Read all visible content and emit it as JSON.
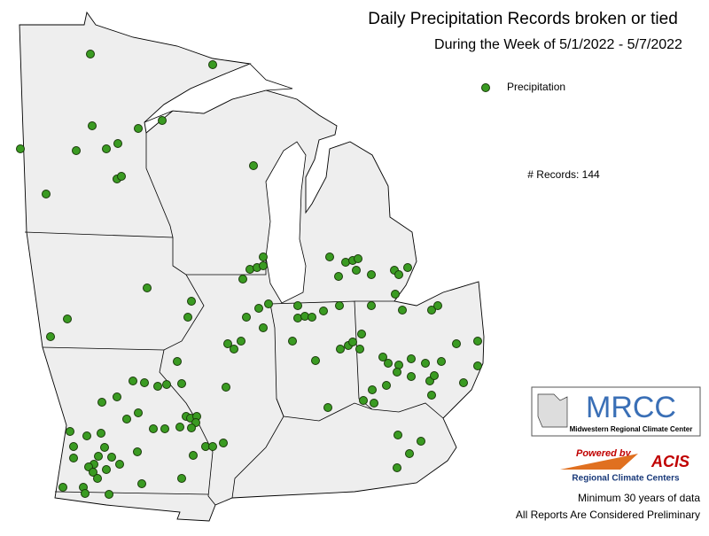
{
  "header": {
    "title": "Daily Precipitation Records broken or tied",
    "subtitle": "During the Week of 5/1/2022 - 5/7/2022"
  },
  "legend": {
    "label": "Precipitation"
  },
  "records": "# Records: 144",
  "logo": {
    "name": "MRCC",
    "full_name": "Midwestern Regional Climate Center",
    "powered_by": "Powered by",
    "acis": "ACIS",
    "acis_name": "Regional Climate Centers"
  },
  "footer": {
    "line1": "Minimum 30 years of data",
    "line2": "All Reports Are Considered Preliminary"
  }
}
